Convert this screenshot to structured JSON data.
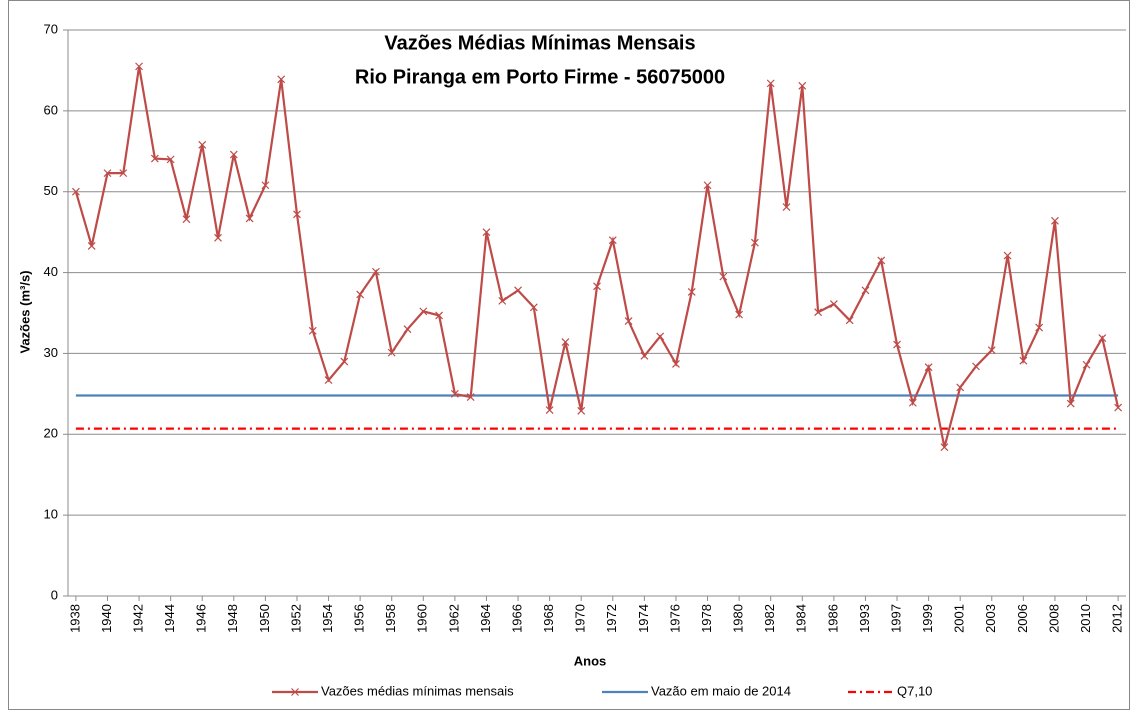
{
  "chart_data": {
    "type": "line",
    "title": [
      "Vazões Médias Mínimas Mensais",
      "Rio Piranga em Porto Firme - 56075000"
    ],
    "xlabel": "Anos",
    "ylabel": "Vazões (m³/s)",
    "categories": [
      "1938",
      null,
      "1940",
      null,
      "1942",
      null,
      "1944",
      null,
      "1946",
      null,
      "1948",
      null,
      "1950",
      null,
      "1952",
      null,
      "1954",
      null,
      "1956",
      null,
      "1958",
      null,
      "1960",
      null,
      "1962",
      null,
      "1964",
      null,
      "1966",
      null,
      "1968",
      null,
      "1970",
      null,
      "1972",
      null,
      "1974",
      null,
      "1976",
      null,
      "1978",
      null,
      "1980",
      null,
      "1982",
      null,
      "1984",
      null,
      "1986",
      null,
      "1993",
      null,
      "1997",
      null,
      "1999",
      null,
      "2001",
      null,
      "2003",
      null,
      "2006",
      null,
      "2008",
      null,
      "2010",
      null,
      "2012"
    ],
    "series": [
      {
        "name": "Vazões médias mínimas mensais",
        "color": "#be4b48",
        "marker": "x",
        "linestyle": "solid",
        "values": [
          50,
          43.3,
          52.3,
          52.3,
          65.5,
          54.1,
          54.0,
          46.6,
          55.8,
          44.3,
          54.6,
          46.7,
          50.8,
          63.9,
          47.2,
          32.8,
          26.7,
          29.0,
          37.3,
          40.1,
          30.1,
          33.0,
          35.2,
          34.7,
          25.0,
          24.6,
          45.0,
          36.5,
          37.8,
          35.7,
          23.0,
          31.4,
          22.9,
          38.3,
          44.0,
          34.0,
          29.7,
          32.1,
          28.7,
          37.6,
          50.8,
          39.5,
          34.8,
          43.7,
          63.4,
          48.1,
          63.1,
          35.1,
          36.1,
          34.1,
          37.8,
          41.5,
          31.1,
          23.9,
          28.3,
          18.4,
          25.8,
          28.4,
          30.4,
          42.1,
          29.1,
          33.2,
          46.4,
          23.8,
          28.6,
          31.9,
          23.3
        ]
      },
      {
        "name": "Vazão em maio de 2014",
        "color": "#4f81bd",
        "marker": null,
        "linestyle": "solid",
        "values": [
          24.8,
          24.8,
          24.8,
          24.8,
          24.8,
          24.8,
          24.8,
          24.8,
          24.8,
          24.8,
          24.8,
          24.8,
          24.8,
          24.8,
          24.8,
          24.8,
          24.8,
          24.8,
          24.8,
          24.8,
          24.8,
          24.8,
          24.8,
          24.8,
          24.8,
          24.8,
          24.8,
          24.8,
          24.8,
          24.8,
          24.8,
          24.8,
          24.8,
          24.8,
          24.8,
          24.8,
          24.8,
          24.8,
          24.8,
          24.8,
          24.8,
          24.8,
          24.8,
          24.8,
          24.8,
          24.8,
          24.8,
          24.8,
          24.8,
          24.8,
          24.8,
          24.8,
          24.8,
          24.8,
          24.8,
          24.8,
          24.8,
          24.8,
          24.8,
          24.8,
          24.8,
          24.8,
          24.8,
          24.8,
          24.8,
          24.8,
          24.8
        ]
      },
      {
        "name": "Q7,10",
        "color": "#ff0000",
        "marker": null,
        "linestyle": "dashdot",
        "values": [
          20.7,
          20.7,
          20.7,
          20.7,
          20.7,
          20.7,
          20.7,
          20.7,
          20.7,
          20.7,
          20.7,
          20.7,
          20.7,
          20.7,
          20.7,
          20.7,
          20.7,
          20.7,
          20.7,
          20.7,
          20.7,
          20.7,
          20.7,
          20.7,
          20.7,
          20.7,
          20.7,
          20.7,
          20.7,
          20.7,
          20.7,
          20.7,
          20.7,
          20.7,
          20.7,
          20.7,
          20.7,
          20.7,
          20.7,
          20.7,
          20.7,
          20.7,
          20.7,
          20.7,
          20.7,
          20.7,
          20.7,
          20.7,
          20.7,
          20.7,
          20.7,
          20.7,
          20.7,
          20.7,
          20.7,
          20.7,
          20.7,
          20.7,
          20.7,
          20.7,
          20.7,
          20.7,
          20.7,
          20.7,
          20.7,
          20.7,
          20.7
        ]
      }
    ],
    "ylim": [
      0,
      70
    ],
    "yticks": [
      0,
      10,
      20,
      30,
      40,
      50,
      60,
      70
    ],
    "grid": true,
    "legend": "bottom"
  }
}
